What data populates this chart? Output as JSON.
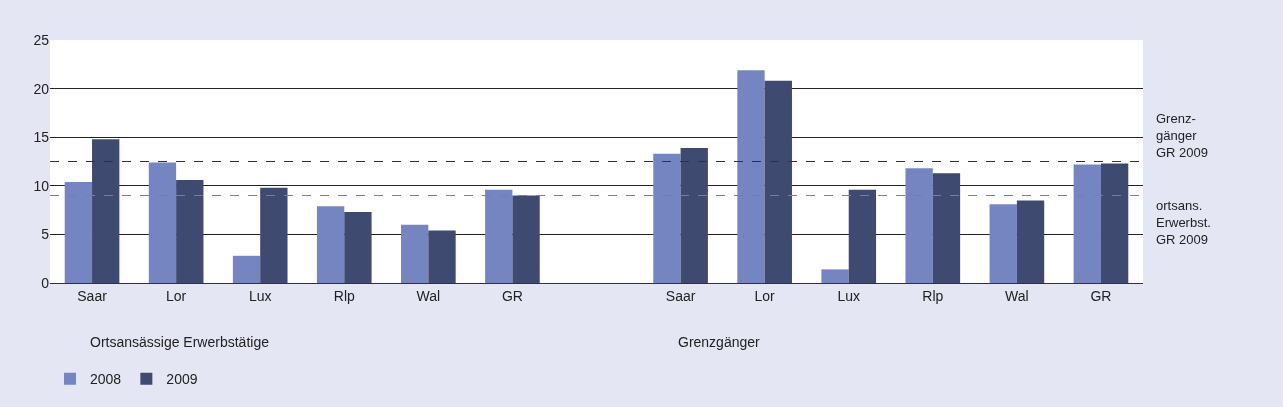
{
  "chart_data": {
    "type": "bar",
    "categories": [
      "Saar",
      "Lor",
      "Lux",
      "Rlp",
      "Wal",
      "GR",
      null,
      "Saar",
      "Lor",
      "Lux",
      "Rlp",
      "Wal",
      "GR"
    ],
    "series": [
      {
        "name": "2008",
        "color": "#7585c1",
        "values": [
          10.4,
          12.4,
          2.8,
          7.9,
          6.0,
          9.6,
          null,
          13.3,
          21.9,
          1.4,
          11.8,
          8.1,
          12.2
        ]
      },
      {
        "name": "2009",
        "color": "#3f4a70",
        "values": [
          14.8,
          10.6,
          9.8,
          7.3,
          5.4,
          9.0,
          null,
          13.9,
          20.8,
          9.6,
          11.3,
          8.5,
          12.3
        ]
      }
    ],
    "ylim": [
      0,
      25
    ],
    "yticks": [
      0,
      5,
      10,
      15,
      20,
      25
    ],
    "grid": "y",
    "legend": "bottom left",
    "ref_lines": [
      {
        "axis": "y",
        "value": 12.5,
        "label": "Grenz-\ngänger\nGR 2009",
        "color": "#333333",
        "line_style": "dashed"
      },
      {
        "axis": "y",
        "value": 9.0,
        "label": "ortsans.\nErwerbst.\nGR 2009",
        "color": "#808080",
        "line_style": "dashed"
      }
    ],
    "annotations": [
      "Ortsansässige Erwerbstätige",
      "Grenzgänger"
    ]
  }
}
